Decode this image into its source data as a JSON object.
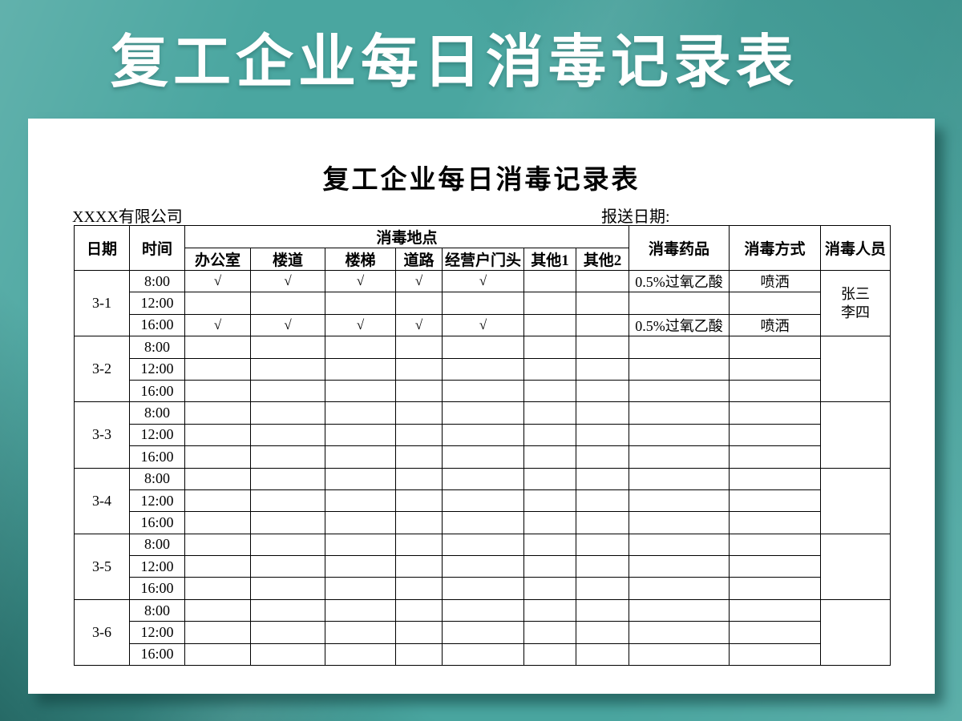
{
  "banner": {
    "title": "复工企业每日消毒记录表"
  },
  "paper": {
    "title": "复工企业每日消毒记录表",
    "company": "XXXX有限公司",
    "report_date_label": "报送日期:",
    "table": {
      "headers": {
        "date": "日期",
        "time": "时间",
        "location_group": "消毒地点",
        "locations": [
          "办公室",
          "楼道",
          "楼梯",
          "道路",
          "经营户门头",
          "其他1",
          "其他2"
        ],
        "drug": "消毒药品",
        "method": "消毒方式",
        "personnel": "消毒人员"
      },
      "check_mark": "√",
      "groups": [
        {
          "date": "3-1",
          "personnel": [
            "张三",
            "李四"
          ],
          "rows": [
            {
              "time": "8:00",
              "locations": [
                "√",
                "√",
                "√",
                "√",
                "√",
                "",
                ""
              ],
              "drug": "0.5%过氧乙酸",
              "method": "喷洒"
            },
            {
              "time": "12:00",
              "locations": [
                "",
                "",
                "",
                "",
                "",
                "",
                ""
              ],
              "drug": "",
              "method": ""
            },
            {
              "time": "16:00",
              "locations": [
                "√",
                "√",
                "√",
                "√",
                "√",
                "",
                ""
              ],
              "drug": "0.5%过氧乙酸",
              "method": "喷洒"
            }
          ]
        },
        {
          "date": "3-2",
          "personnel": [],
          "rows": [
            {
              "time": "8:00",
              "locations": [
                "",
                "",
                "",
                "",
                "",
                "",
                ""
              ],
              "drug": "",
              "method": ""
            },
            {
              "time": "12:00",
              "locations": [
                "",
                "",
                "",
                "",
                "",
                "",
                ""
              ],
              "drug": "",
              "method": ""
            },
            {
              "time": "16:00",
              "locations": [
                "",
                "",
                "",
                "",
                "",
                "",
                ""
              ],
              "drug": "",
              "method": ""
            }
          ]
        },
        {
          "date": "3-3",
          "personnel": [],
          "rows": [
            {
              "time": "8:00",
              "locations": [
                "",
                "",
                "",
                "",
                "",
                "",
                ""
              ],
              "drug": "",
              "method": ""
            },
            {
              "time": "12:00",
              "locations": [
                "",
                "",
                "",
                "",
                "",
                "",
                ""
              ],
              "drug": "",
              "method": ""
            },
            {
              "time": "16:00",
              "locations": [
                "",
                "",
                "",
                "",
                "",
                "",
                ""
              ],
              "drug": "",
              "method": ""
            }
          ]
        },
        {
          "date": "3-4",
          "personnel": [],
          "rows": [
            {
              "time": "8:00",
              "locations": [
                "",
                "",
                "",
                "",
                "",
                "",
                ""
              ],
              "drug": "",
              "method": ""
            },
            {
              "time": "12:00",
              "locations": [
                "",
                "",
                "",
                "",
                "",
                "",
                ""
              ],
              "drug": "",
              "method": ""
            },
            {
              "time": "16:00",
              "locations": [
                "",
                "",
                "",
                "",
                "",
                "",
                ""
              ],
              "drug": "",
              "method": ""
            }
          ]
        },
        {
          "date": "3-5",
          "personnel": [],
          "rows": [
            {
              "time": "8:00",
              "locations": [
                "",
                "",
                "",
                "",
                "",
                "",
                ""
              ],
              "drug": "",
              "method": ""
            },
            {
              "time": "12:00",
              "locations": [
                "",
                "",
                "",
                "",
                "",
                "",
                ""
              ],
              "drug": "",
              "method": ""
            },
            {
              "time": "16:00",
              "locations": [
                "",
                "",
                "",
                "",
                "",
                "",
                ""
              ],
              "drug": "",
              "method": ""
            }
          ]
        },
        {
          "date": "3-6",
          "personnel": [],
          "rows": [
            {
              "time": "8:00",
              "locations": [
                "",
                "",
                "",
                "",
                "",
                "",
                ""
              ],
              "drug": "",
              "method": ""
            },
            {
              "time": "12:00",
              "locations": [
                "",
                "",
                "",
                "",
                "",
                "",
                ""
              ],
              "drug": "",
              "method": ""
            },
            {
              "time": "16:00",
              "locations": [
                "",
                "",
                "",
                "",
                "",
                "",
                ""
              ],
              "drug": "",
              "method": ""
            }
          ]
        }
      ]
    }
  },
  "colors": {
    "background_teal": "#4AA6A0",
    "background_dark_corner": "#0F4A48",
    "banner_text": "#FFFFFF",
    "paper": "#FFFFFF",
    "ink": "#000000"
  }
}
